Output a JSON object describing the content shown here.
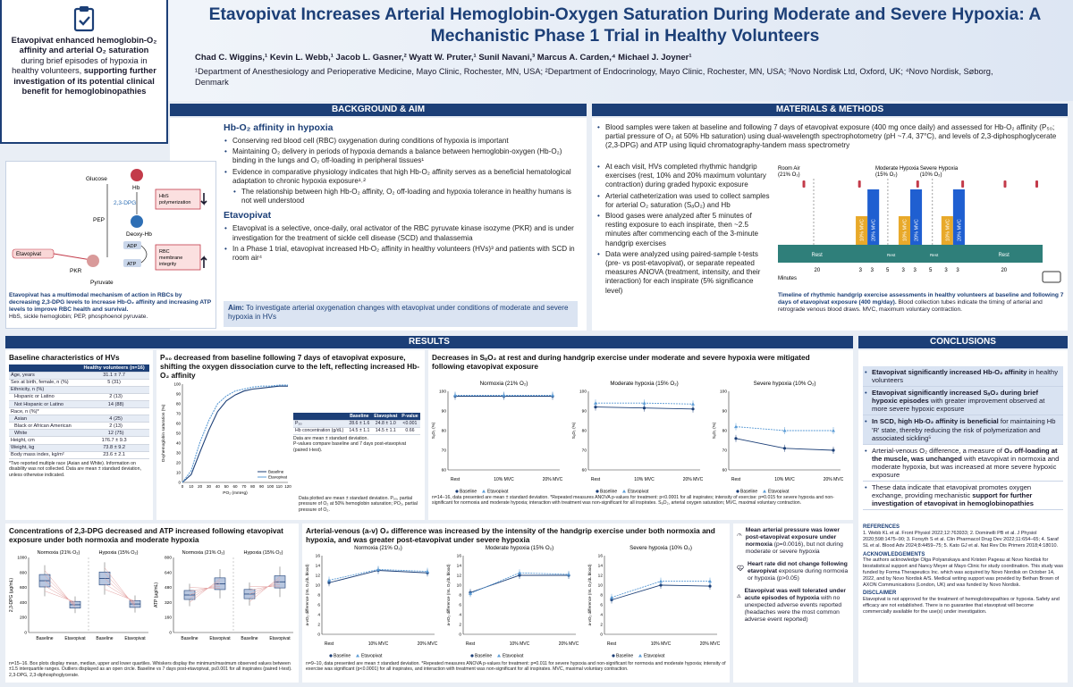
{
  "title": "Etavopivat Increases Arterial Hemoglobin-Oxygen Saturation During Moderate and Severe Hypoxia: A Mechanistic Phase 1 Trial in Healthy Volunteers",
  "authors": "Chad C. Wiggins,¹ Kevin L. Webb,¹ Jacob L. Gasner,² Wyatt W. Pruter,¹ Sunil Navani,³ Marcus A. Carden,⁴ Michael J. Joyner¹",
  "affiliations": "¹Department of Anesthesiology and Perioperative Medicine, Mayo Clinic, Rochester, MN, USA; ²Department of Endocrinology, Mayo Clinic, Rochester, MN, USA; ³Novo Nordisk Ltd, Oxford, UK; ⁴Novo Nordisk, Søborg, Denmark",
  "summary": {
    "p1": "Etavopivat enhanced hemoglobin-O₂ affinity and arterial O₂ saturation",
    "p2": " during brief episodes of hypoxia in healthy volunteers, ",
    "p3": "supporting further investigation of its potential clinical benefit for hemoglobinopathies"
  },
  "background": {
    "header": "BACKGROUND & AIM",
    "h1": "Hb-O₂ affinity in hypoxia",
    "b1": "Conserving red blood cell (RBC) oxygenation during conditions of hypoxia is important",
    "b2": "Maintaining O₂ delivery in periods of hypoxia demands a balance between hemoglobin-oxygen (Hb-O₂) binding in the lungs and O₂ off-loading in peripheral tissues¹",
    "b3": "Evidence in comparative physiology indicates that high Hb-O₂ affinity serves as a beneficial hematological adaptation to chronic hypoxia exposure¹˒²",
    "b4": "The relationship between high Hb-O₂ affinity, O₂ off-loading and hypoxia tolerance in healthy humans is not well understood",
    "h2": "Etavopivat",
    "b5": "Etavopivat is a selective, once-daily, oral activator of the RBC pyruvate kinase isozyme (PKR) and is under investigation for the treatment of sickle cell disease (SCD) and thalassemia",
    "b6": "In a Phase 1 trial, etavopivat increased Hb-O₂ affinity in healthy volunteers (HVs)³ and patients with SCD in room air⁴",
    "aim_label": "Aim:",
    "aim": " To investigate arterial oxygenation changes with etavopivat under conditions of moderate and severe hypoxia in HVs"
  },
  "mechanism": {
    "glucose": "Glucose",
    "hb": "Hb",
    "dpg": "2,3-DPG",
    "pep": "PEP",
    "deoxy": "Deoxy-Hb",
    "adp": "ADP",
    "atp": "ATP",
    "pkr": "PKR",
    "pyruvate": "Pyruvate",
    "drug": "Etavopivat",
    "hbs": "HbS polymerization",
    "rbc": "RBC membrane integrity",
    "caption": "Etavopivat has a multimodal mechanism of action in RBCs by decreasing 2,3-DPG levels to increase Hb-O₂ affinity and increasing ATP levels to improve RBC health and survival.",
    "abbr": "HbS, sickle hemoglobin; PEP, phosphoenol pyruvate."
  },
  "methods": {
    "header": "MATERIALS & METHODS",
    "b1": "Blood samples were taken at baseline and following 7 days of etavopivat exposure (400 mg once daily) and assessed for Hb-O₂ affinity (P₅₀; partial pressure of O₂ at 50% Hb saturation) using dual-wavelength spectrophotometry (pH ~7.4, 37°C), and levels of 2,3-diphosphoglycerate (2,3-DPG) and ATP using liquid chromatography-tandem mass spectrometry",
    "b2": "At each visit, HVs completed rhythmic handgrip exercises (rest, 10% and 20% maximum voluntary contraction) during graded hypoxic exposure",
    "b3": "Arterial catheterization was used to collect samples for arterial O₂ saturation (SₐO₂) and Hb",
    "b4": "Blood gases were analyzed after 5 minutes of resting exposure to each inspirate, then ~2.5 minutes after commencing each of the 3-minute handgrip exercises",
    "b5": "Data were analyzed using paired-sample t-tests (pre- vs post-etavopivat), or separate repeated measures ANOVA (treatment, intensity, and their interaction) for each inspirate (5% significance level)",
    "caption_bold": "Timeline of rhythmic handgrip exercise assessments in healthy volunteers at baseline and following 7 days of etavopivat exposure (400 mg/day).",
    "caption": " Blood collection tubes indicate the timing of arterial and retrograde venous blood draws. MVC, maximum voluntary contraction."
  },
  "timeline": {
    "phases": [
      "Room Air (21% O₂)",
      "Moderate Hypoxia (15% O₂)",
      "Severe Hypoxia (10% O₂)"
    ],
    "rest": "Rest",
    "mvc10": "10% MVC",
    "mvc20": "20% MVC",
    "minutes": [
      "20",
      "3",
      "3",
      "5",
      "3",
      "3",
      "5",
      "3",
      "3",
      "20"
    ],
    "xunit": "Minutes"
  },
  "results_header": "RESULTS",
  "conclusions_header": "CONCLUSIONS",
  "baseline": {
    "title": "Baseline characteristics of HVs",
    "col": "Healthy volunteers (n=16)",
    "rows": [
      [
        "Age, years",
        "31.1 ± 7.7"
      ],
      [
        "Sex at birth, female, n (%)",
        "5 (31)"
      ],
      [
        "Ethnicity, n (%)",
        ""
      ],
      [
        "Hispanic or Latino",
        "2 (13)"
      ],
      [
        "Not Hispanic or Latino",
        "14 (88)"
      ],
      [
        "Race, n (%)*",
        ""
      ],
      [
        "Asian",
        "4 (25)"
      ],
      [
        "Black or African American",
        "2 (13)"
      ],
      [
        "White",
        "12 (75)"
      ],
      [
        "Height, cm",
        "176.7 ± 9.3"
      ],
      [
        "Weight, kg",
        "73.8 ± 9.2"
      ],
      [
        "Body mass index, kg/m²",
        "23.6 ± 2.1"
      ]
    ],
    "note": "*Two reported multiple race (Asian and White). Information on disability was not collected. Data are mean ± standard deviation, unless otherwise indicated."
  },
  "p50": {
    "title": "P₅₀ decreased from baseline following 7 days of etavopivat exposure, shifting the oxygen dissociation curve to the left, reflecting increased Hb-O₂ affinity",
    "ylabel": "Oxyhemoglobin saturation (%)",
    "xlabel": "PO₂ (mmHg)",
    "legend": [
      "Baseline",
      "Etavopivat"
    ],
    "table": {
      "head": [
        "",
        "Baseline",
        "Etavopivat",
        "P-value"
      ],
      "rows": [
        [
          "P₅₀",
          "28.6 ± 1.6",
          "24.8 ± 1.0",
          "<0.001"
        ],
        [
          "Hb concentration (g/dL)",
          "14.5 ± 1.1",
          "14.5 ± 1.1",
          "0.66"
        ]
      ],
      "note1": "Data are mean ± standard deviation.",
      "note2": "P-values compare baseline and 7 days post-etavopivat (paired t-test)."
    },
    "footnote": "Data plotted are mean ± standard deviation. P₅₀, partial pressure of O₂ at 50% hemoglobin saturation; PO₂, partial pressure of O₂."
  },
  "sao2": {
    "title": "Decreases in SₐO₂ at rest and during handgrip exercise under moderate and severe hypoxia were mitigated following etavopivat exposure",
    "footnote": "n=14–16, data presented are mean ± standard deviation. *Repeated measures ANOVA p-values for treatment: p<0.0001 for all inspirates; intensity of exercise: p=0.015 for severe hypoxia and non-significant for normoxia and moderate hypoxia; interaction with treatment was non-significant for all inspirates. SₐO₂, arterial oxygen saturation; MVC, maximal voluntary contraction."
  },
  "dpg": {
    "title": "Concentrations of 2,3-DPG decreased and ATP increased following etavopivat exposure under both normoxia and moderate hypoxia",
    "footnote": "n=15–16. Box plots display mean, median, upper and lower quartiles. Whiskers display the minimum/maximum observed values between ±1.5 interquartile ranges. Outliers displayed as an open circle. Baseline vs 7 days post-etavopivat, p≤0.001 for all inspirates (paired t-test). 2,3-DPG, 2,3-diphosphoglycerate."
  },
  "avo2": {
    "title": "Arterial-venous (a-v) O₂ difference was increased by the intensity of the handgrip exercise under both normoxia and hypoxia, and was greater post-etavopivat under severe hypoxia",
    "footnote": "n=9–10, data presented are mean ± standard deviation. *Repeated measures ANOVA p-values for treatment: p=0.011 for severe hypoxia and non-significant for normoxia and moderate hypoxia; intensity of exercise was significant (p<0.0001) for all inspirates, and interaction with treatment was non-significant for all inspirates. MVC, maximal voluntary contraction."
  },
  "side": {
    "s1b": "Mean arterial pressure was lower post-etavopivat exposure under normoxia",
    "s1": " (p=0.0016), but not during moderate or severe hypoxia",
    "s2b": "Heart rate did not change following etavopivat",
    "s2": " exposure during normoxia or hypoxia (p>0.05)",
    "s3b": "Etavopivat was well tolerated under acute episodes of hypoxia",
    "s3": " with no unexpected adverse events reported (headaches were the most common adverse event reported)"
  },
  "conclusions": {
    "c1b": "Etavopivat significantly increased Hb-O₂ affinity",
    "c1": " in healthy volunteers",
    "c2b": "Etavopivat significantly increased SₐO₂ during brief hypoxic episodes",
    "c2": " with greater improvement observed at more severe hypoxic exposure",
    "c3b": "In SCD, high Hb-O₂ affinity is beneficial",
    "c3": " for maintaining Hb 'R' state, thereby reducing the risk of polymerization and associated sickling⁵",
    "c4a": "Arterial-venous O₂ difference, a measure of ",
    "c4b": "O₂ off-loading at the muscle, was unchanged",
    "c4c": " with etavopivat in normoxia and moderate hypoxia, but was increased at more severe hypoxic exposure",
    "c5a": "These data indicate that etavopivat promotes oxygen exchange, providing mechanistic ",
    "c5b": "support for further investigation of etavopivat in hemoglobinopathies"
  },
  "refs": {
    "h": "REFERENCES",
    "t": "1. Webb KL et al. Front Physiol 2022;12:763933; 2. Dominelli PB et al. J Physiol 2020;598:1475–90; 3. Forsyth S et al. Clin Pharmacol Drug Dev 2022;11:654–65; 4. Saraf SL et al. Blood Adv 2024;8:4459–75; 5. Kato GJ et al. Nat Rev Dis Primers 2018;4:18010."
  },
  "ack": {
    "h": "ACKNOWLEDGEMENTS",
    "t": "The authors acknowledge Olga Polyanskaya and Kristen Pageau at Novo Nordisk for biostatistical support and Nancy Meyer at Mayo Clinic for study coordination. This study was funded by Forma Therapeutics Inc. which was acquired by Novo Nordisk on October 14, 2022, and by Novo Nordisk A/S. Medical writing support was provided by Bethan Brown of AXON Communications (London, UK) and was funded by Novo Nordisk."
  },
  "disc": {
    "h": "DISCLAIMER",
    "t": "Etavopivat is not approved for the treatment of hemoglobinopathies or hypoxia. Safety and efficacy are not established. There is no guarantee that etavopivat will become commercially available for the use(s) under investigation."
  },
  "chart_data": [
    {
      "type": "line",
      "name": "oxygen dissociation curve",
      "xlabel": "PO₂ (mmHg)",
      "ylabel": "Oxyhemoglobin saturation (%)",
      "x": [
        0,
        10,
        20,
        30,
        40,
        50,
        60,
        70,
        80,
        90,
        100,
        110,
        120
      ],
      "xlim": [
        0,
        120
      ],
      "ylim": [
        0,
        100
      ],
      "series": [
        {
          "name": "Baseline",
          "values": [
            0,
            8,
            31,
            53,
            72,
            83,
            89,
            93,
            95,
            96,
            97,
            98,
            98
          ]
        },
        {
          "name": "Etavopivat",
          "values": [
            0,
            12,
            41,
            63,
            80,
            88,
            93,
            95,
            97,
            98,
            98,
            99,
            99
          ]
        }
      ]
    },
    {
      "type": "line",
      "title": "Normoxia (21% O₂)",
      "categories": [
        "Rest",
        "10% MVC",
        "20% MVC"
      ],
      "ylabel": "SₐO₂ (%)",
      "ylim": [
        60,
        100
      ],
      "series": [
        {
          "name": "Baseline",
          "values": [
            97.5,
            97.5,
            97.5
          ]
        },
        {
          "name": "Etavopivat",
          "values": [
            98,
            98,
            98
          ]
        }
      ]
    },
    {
      "type": "line",
      "title": "Moderate hypoxia (15% O₂)",
      "categories": [
        "Rest",
        "10% MVC",
        "20% MVC"
      ],
      "ylabel": "SₐO₂ (%)",
      "ylim": [
        60,
        100
      ],
      "series": [
        {
          "name": "Baseline",
          "values": [
            92,
            91.5,
            91
          ]
        },
        {
          "name": "Etavopivat",
          "values": [
            94,
            94,
            93.5
          ]
        }
      ]
    },
    {
      "type": "line",
      "title": "Severe hypoxia (10% O₂)",
      "categories": [
        "Rest",
        "10% MVC",
        "20% MVC"
      ],
      "ylabel": "SₐO₂ (%)",
      "ylim": [
        60,
        100
      ],
      "series": [
        {
          "name": "Baseline",
          "values": [
            76,
            71,
            70
          ]
        },
        {
          "name": "Etavopivat",
          "values": [
            82,
            80,
            80
          ]
        }
      ]
    },
    {
      "type": "box",
      "title": "2,3-DPG",
      "ylabel": "2,3-DPG (µg/mL)",
      "ylim": [
        0,
        1000
      ],
      "groups": [
        "Normoxia (21% O₂)",
        "Hypoxia (15% O₂)"
      ],
      "categories": [
        "Baseline",
        "Etavopivat"
      ],
      "means": [
        [
          690,
          370
        ],
        [
          720,
          380
        ]
      ]
    },
    {
      "type": "box",
      "title": "ATP",
      "ylabel": "ATP (µg/mL)",
      "ylim": [
        0,
        800
      ],
      "groups": [
        "Normoxia (21% O₂)",
        "Hypoxia (15% O₂)"
      ],
      "categories": [
        "Baseline",
        "Etavopivat"
      ],
      "means": [
        [
          400,
          520
        ],
        [
          410,
          540
        ]
      ]
    },
    {
      "type": "line",
      "title": "Normoxia (21% O₂)",
      "categories": [
        "Rest",
        "10% MVC",
        "20% MVC"
      ],
      "ylabel": "a-vO₂ difference (mL O₂/dL blood)",
      "ylim": [
        0,
        16
      ],
      "series": [
        {
          "name": "Baseline",
          "values": [
            10.5,
            13,
            12.5
          ]
        },
        {
          "name": "Etavopivat",
          "values": [
            11,
            13.2,
            12.8
          ]
        }
      ]
    },
    {
      "type": "line",
      "title": "Moderate hypoxia (15% O₂)",
      "categories": [
        "Rest",
        "10% MVC",
        "20% MVC"
      ],
      "ylabel": "a-vO₂ difference (mL O₂/dL blood)",
      "ylim": [
        0,
        16
      ],
      "series": [
        {
          "name": "Baseline",
          "values": [
            8.5,
            12,
            12
          ]
        },
        {
          "name": "Etavopivat",
          "values": [
            8.3,
            12.5,
            12.2
          ]
        }
      ]
    },
    {
      "type": "line",
      "title": "Severe hypoxia (10% O₂)",
      "categories": [
        "Rest",
        "10% MVC",
        "20% MVC"
      ],
      "ylabel": "a-vO₂ difference (mL O₂/dL blood)",
      "ylim": [
        0,
        16
      ],
      "series": [
        {
          "name": "Baseline",
          "values": [
            7,
            10,
            9.8
          ]
        },
        {
          "name": "Etavopivat",
          "values": [
            7.5,
            10.8,
            10.8
          ]
        }
      ]
    }
  ]
}
